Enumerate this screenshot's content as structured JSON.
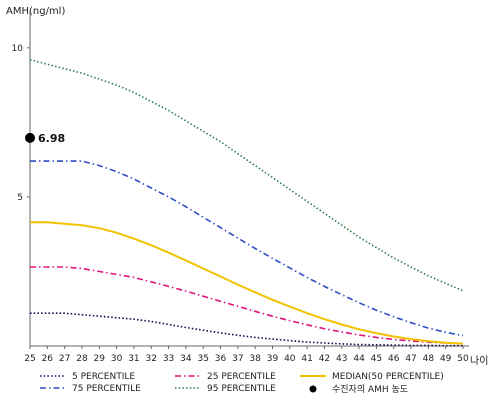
{
  "chart_data": {
    "type": "line",
    "ylabel": "AMH(ng/ml)",
    "xlabel": "나이",
    "x": [
      25,
      26,
      27,
      28,
      29,
      30,
      31,
      32,
      33,
      34,
      35,
      36,
      37,
      38,
      39,
      40,
      41,
      42,
      43,
      44,
      45,
      46,
      47,
      48,
      49,
      50
    ],
    "xlim": [
      25,
      50
    ],
    "ylim": [
      0,
      11
    ],
    "yticks": [
      5,
      10
    ],
    "grid": false,
    "legend_position": "bottom",
    "series": [
      {
        "name": "5 PERCENTILE",
        "color": "#0a0a50",
        "style": "dotted",
        "values": [
          1.1,
          1.1,
          1.1,
          1.05,
          1.0,
          0.95,
          0.9,
          0.82,
          0.72,
          0.62,
          0.53,
          0.44,
          0.36,
          0.29,
          0.23,
          0.18,
          0.13,
          0.1,
          0.07,
          0.05,
          0.04,
          0.03,
          0.02,
          0.02,
          0.01,
          0.01
        ]
      },
      {
        "name": "25 PERCENTILE",
        "color": "#e0127a",
        "style": "dashdot",
        "values": [
          2.65,
          2.65,
          2.65,
          2.6,
          2.5,
          2.4,
          2.3,
          2.15,
          2.0,
          1.84,
          1.67,
          1.5,
          1.33,
          1.16,
          1.0,
          0.85,
          0.71,
          0.58,
          0.47,
          0.37,
          0.29,
          0.22,
          0.17,
          0.13,
          0.1,
          0.08
        ]
      },
      {
        "name": "MEDIAN(50 PERCENTILE)",
        "color": "#f2c200",
        "style": "solid",
        "values": [
          4.15,
          4.15,
          4.1,
          4.05,
          3.95,
          3.8,
          3.6,
          3.38,
          3.13,
          2.87,
          2.6,
          2.33,
          2.06,
          1.8,
          1.55,
          1.32,
          1.1,
          0.9,
          0.72,
          0.56,
          0.43,
          0.32,
          0.23,
          0.16,
          0.11,
          0.08
        ]
      },
      {
        "name": "75 PERCENTILE",
        "color": "#2f4fc4",
        "style": "dashdot",
        "values": [
          6.2,
          6.2,
          6.2,
          6.2,
          6.05,
          5.85,
          5.6,
          5.3,
          5.0,
          4.67,
          4.32,
          3.97,
          3.62,
          3.27,
          2.94,
          2.62,
          2.3,
          2.0,
          1.72,
          1.45,
          1.2,
          0.98,
          0.78,
          0.6,
          0.46,
          0.35
        ]
      },
      {
        "name": "95 PERCENTILE",
        "color": "#2e7d4a",
        "style": "dotted",
        "values": [
          9.6,
          9.45,
          9.3,
          9.15,
          8.95,
          8.75,
          8.5,
          8.2,
          7.9,
          7.55,
          7.2,
          6.85,
          6.45,
          6.05,
          5.65,
          5.25,
          4.85,
          4.45,
          4.05,
          3.65,
          3.3,
          2.95,
          2.65,
          2.35,
          2.1,
          1.85
        ]
      }
    ],
    "marker": {
      "x": 25,
      "y": 6.98,
      "label": "6.98",
      "legend": "수진자의 AMH 농도"
    }
  }
}
